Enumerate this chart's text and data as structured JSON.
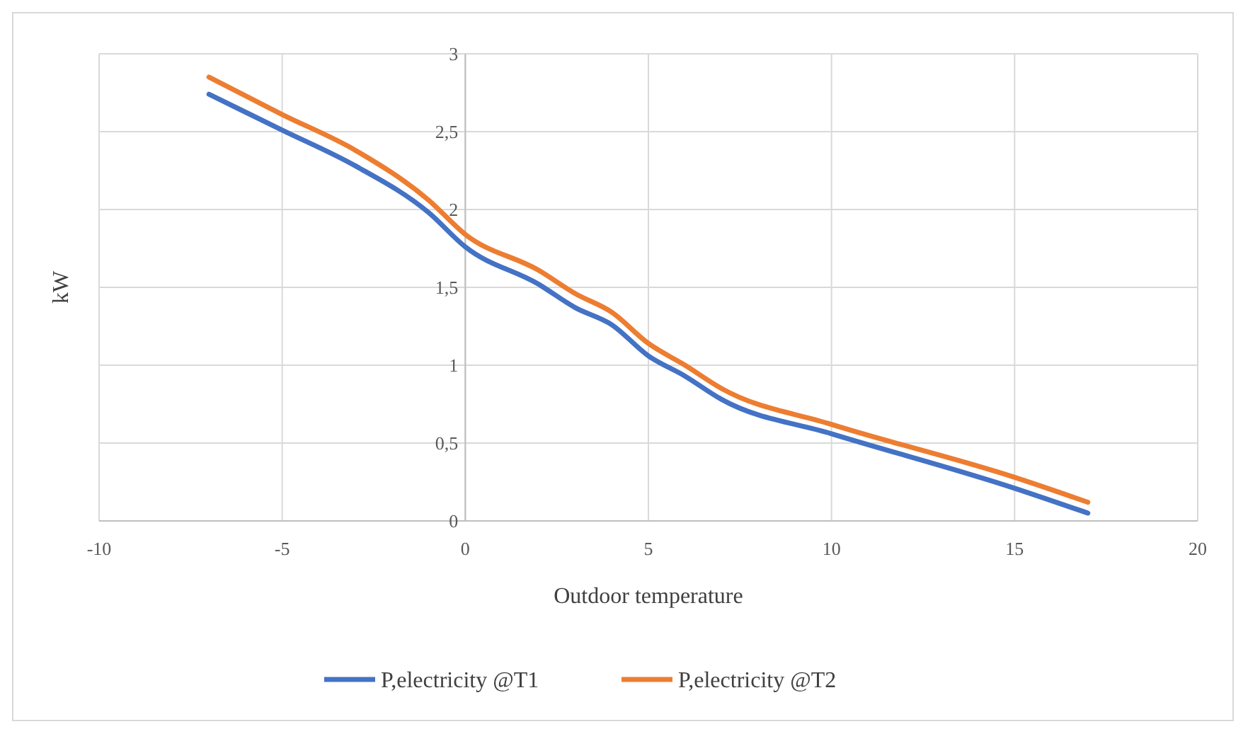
{
  "chart_data": {
    "type": "line",
    "xlabel": "Outdoor temperature",
    "ylabel": "kW",
    "xlim": [
      -10,
      20
    ],
    "xticks": [
      -10,
      -5,
      0,
      5,
      10,
      15,
      20
    ],
    "ylim": [
      0,
      3
    ],
    "yticks": [
      0,
      {
        "value": 0.5,
        "label": "0,5"
      },
      1,
      {
        "value": 1.5,
        "label": "1,5"
      },
      2,
      {
        "value": 2.5,
        "label": "2,5"
      },
      3
    ],
    "grid": true,
    "legend": "bottom",
    "marker": "none",
    "line_style": "solid",
    "series": [
      {
        "name": "P,electricity @T1",
        "color": "#4472c4",
        "x": [
          -7,
          -5,
          -3,
          -1,
          0,
          2,
          3,
          4,
          5,
          6,
          7,
          10,
          15,
          17
        ],
        "values": [
          2.74,
          2.51,
          2.28,
          1.98,
          1.76,
          1.52,
          1.37,
          1.26,
          1.06,
          0.93,
          0.78,
          0.56,
          0.21,
          0.05
        ]
      },
      {
        "name": "P,electricity @T2",
        "color": "#ed7d31",
        "x": [
          -7,
          -5,
          -3,
          -1,
          0,
          2,
          3,
          4,
          5,
          6,
          7,
          10,
          15,
          17
        ],
        "values": [
          2.85,
          2.61,
          2.38,
          2.06,
          1.84,
          1.61,
          1.46,
          1.34,
          1.14,
          1.0,
          0.85,
          0.62,
          0.28,
          0.12
        ]
      }
    ]
  }
}
